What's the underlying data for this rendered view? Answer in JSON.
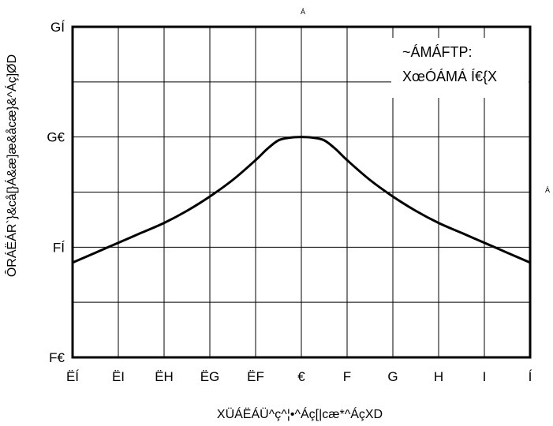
{
  "stray_marks": {
    "top": "Á",
    "right": "Á"
  },
  "legend": {
    "line1": "~ÁMÁFTP:",
    "line2": "XœÓÁMÁ Í€{X"
  },
  "chart_data": {
    "type": "line",
    "title": "",
    "xlabel": "XÜÁËÁÜ^ç^¦•^Áç[|cæ*^ÁçXD",
    "ylabel": "ÔRÁËÁR`}&cå[}Á&æ]æ&åcæ}&^Áç]ØD",
    "x_ticks": [
      "ËÍ",
      "ËI",
      "ËH",
      "ËG",
      "ËF",
      "€",
      "F",
      "G",
      "H",
      "I",
      "Í"
    ],
    "x_tick_values": [
      -5,
      -4,
      -3,
      -2,
      -1,
      0,
      1,
      2,
      3,
      4,
      5
    ],
    "y_ticks": [
      "F€",
      "FÍ",
      "G€",
      "GÍ"
    ],
    "y_tick_values": [
      10,
      15,
      20,
      25
    ],
    "xlim": [
      -5,
      5
    ],
    "ylim": [
      10,
      25
    ],
    "grid": true,
    "series": [
      {
        "x": [
          -5,
          -4.5,
          -4,
          -3.5,
          -3,
          -2.5,
          -2,
          -1.5,
          -1,
          -0.75,
          -0.5,
          -0.25,
          0,
          0.25,
          0.5,
          0.75,
          1,
          1.5,
          2,
          2.5,
          3,
          3.5,
          4,
          4.5,
          5
        ],
        "y": [
          14.3,
          14.75,
          15.2,
          15.65,
          16.1,
          16.65,
          17.3,
          18.05,
          18.95,
          19.45,
          19.85,
          19.97,
          20,
          19.97,
          19.85,
          19.45,
          18.95,
          18.05,
          17.3,
          16.65,
          16.1,
          15.65,
          15.2,
          14.75,
          14.3
        ]
      }
    ]
  }
}
